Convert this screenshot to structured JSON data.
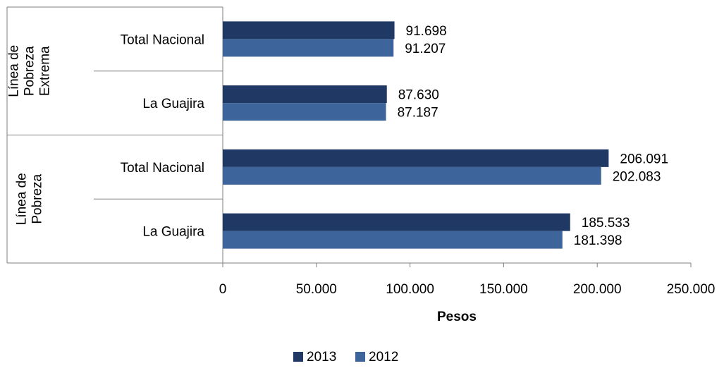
{
  "chart_data": {
    "type": "bar",
    "orientation": "horizontal",
    "groups": [
      {
        "label": "Línea de Pobreza Extrema",
        "label_lines": [
          "Línea de",
          "Pobreza",
          "Extrema"
        ],
        "categories": [
          "Total Nacional",
          "La Guajira"
        ]
      },
      {
        "label": "Línea de Pobreza",
        "label_lines": [
          "Línea de",
          "Pobreza"
        ],
        "categories": [
          "Total Nacional",
          "La Guajira"
        ]
      }
    ],
    "series": [
      {
        "name": "2013",
        "color": "#1f3864",
        "values": [
          91698,
          87630,
          206091,
          185533
        ],
        "labels": [
          "91.698",
          "87.630",
          "206.091",
          "185.533"
        ]
      },
      {
        "name": "2012",
        "color": "#3d649b",
        "values": [
          91207,
          87187,
          202083,
          181398
        ],
        "labels": [
          "91.207",
          "87.187",
          "202.083",
          "181.398"
        ]
      }
    ],
    "xlabel": "Pesos",
    "xlim": [
      0,
      250000
    ],
    "xticks": [
      0,
      50000,
      100000,
      150000,
      200000,
      250000
    ],
    "xtick_labels": [
      "0",
      "50.000",
      "100.000",
      "150.000",
      "200.000",
      "250.000"
    ],
    "grid": false,
    "legend_position": "bottom"
  }
}
